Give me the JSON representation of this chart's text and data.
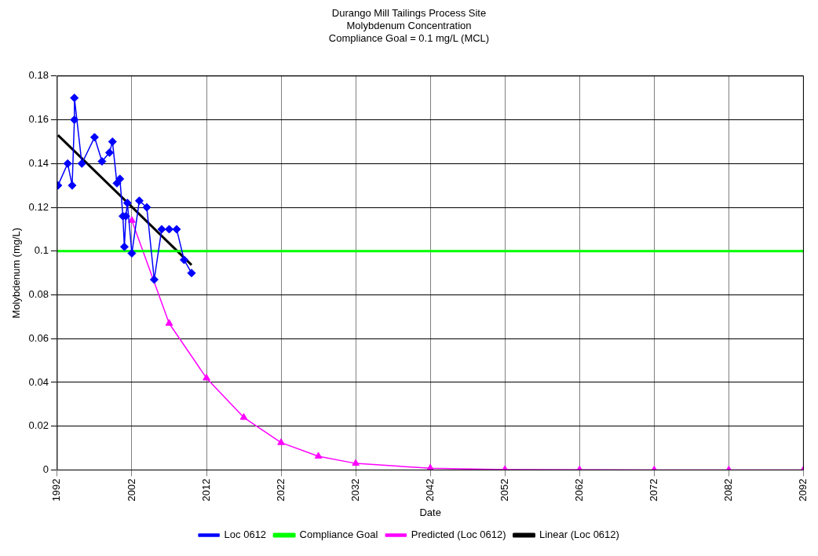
{
  "chart_data": {
    "type": "line",
    "title": [
      "Durango Mill Tailings Process Site",
      "Molybdenum Concentration",
      "Compliance Goal = 0.1 mg/L (MCL)"
    ],
    "xlabel": "Date",
    "ylabel": "Molybdenum (mg/L)",
    "xlim": [
      1992,
      2092
    ],
    "xticks": [
      1992,
      2002,
      2012,
      2022,
      2032,
      2042,
      2052,
      2062,
      2072,
      2082,
      2092
    ],
    "ylim": [
      0,
      0.18
    ],
    "yticks": [
      0,
      0.02,
      0.04,
      0.06,
      0.08,
      0.1,
      0.12,
      0.14,
      0.16,
      0.18
    ],
    "grid": true,
    "legend": "bottom",
    "series": [
      {
        "name": "Loc 0612",
        "color": "#0000ff",
        "marker": "diamond",
        "x": [
          1992.1,
          1993.4,
          1994.0,
          1994.3,
          1994.3,
          1995.3,
          1997.0,
          1998.0,
          1999.0,
          1999.4,
          2000.0,
          2000.4,
          2000.8,
          2001.0,
          2001.2,
          2001.4,
          2002.0,
          2003.0,
          2004.0,
          2005.0,
          2006.0,
          2007.0,
          2008.0,
          2009.0,
          2010.0
        ],
        "values": [
          0.13,
          0.14,
          0.13,
          0.16,
          0.17,
          0.14,
          0.152,
          0.141,
          0.145,
          0.15,
          0.131,
          0.133,
          0.116,
          0.102,
          0.116,
          0.122,
          0.099,
          0.123,
          0.12,
          0.087,
          0.11,
          0.11,
          0.11,
          0.096,
          0.09
        ]
      },
      {
        "name": "Compliance Goal",
        "color": "#00ff00",
        "marker": "none",
        "x": [
          1992,
          2092
        ],
        "values": [
          0.1,
          0.1
        ]
      },
      {
        "name": "Predicted (Loc 0612)",
        "color": "#ff00ff",
        "marker": "triangle",
        "x": [
          2002,
          2007,
          2012,
          2017,
          2022,
          2027,
          2032,
          2042,
          2052,
          2062,
          2072,
          2082,
          2092
        ],
        "values": [
          0.114,
          0.067,
          0.042,
          0.024,
          0.0125,
          0.0063,
          0.003,
          0.0008,
          0.0002,
          0.0001,
          0,
          0,
          0
        ]
      },
      {
        "name": "Linear (Loc 0612)",
        "color": "#000000",
        "marker": "none",
        "x": [
          1992.1,
          2010.0
        ],
        "values": [
          0.153,
          0.0937
        ]
      }
    ]
  }
}
